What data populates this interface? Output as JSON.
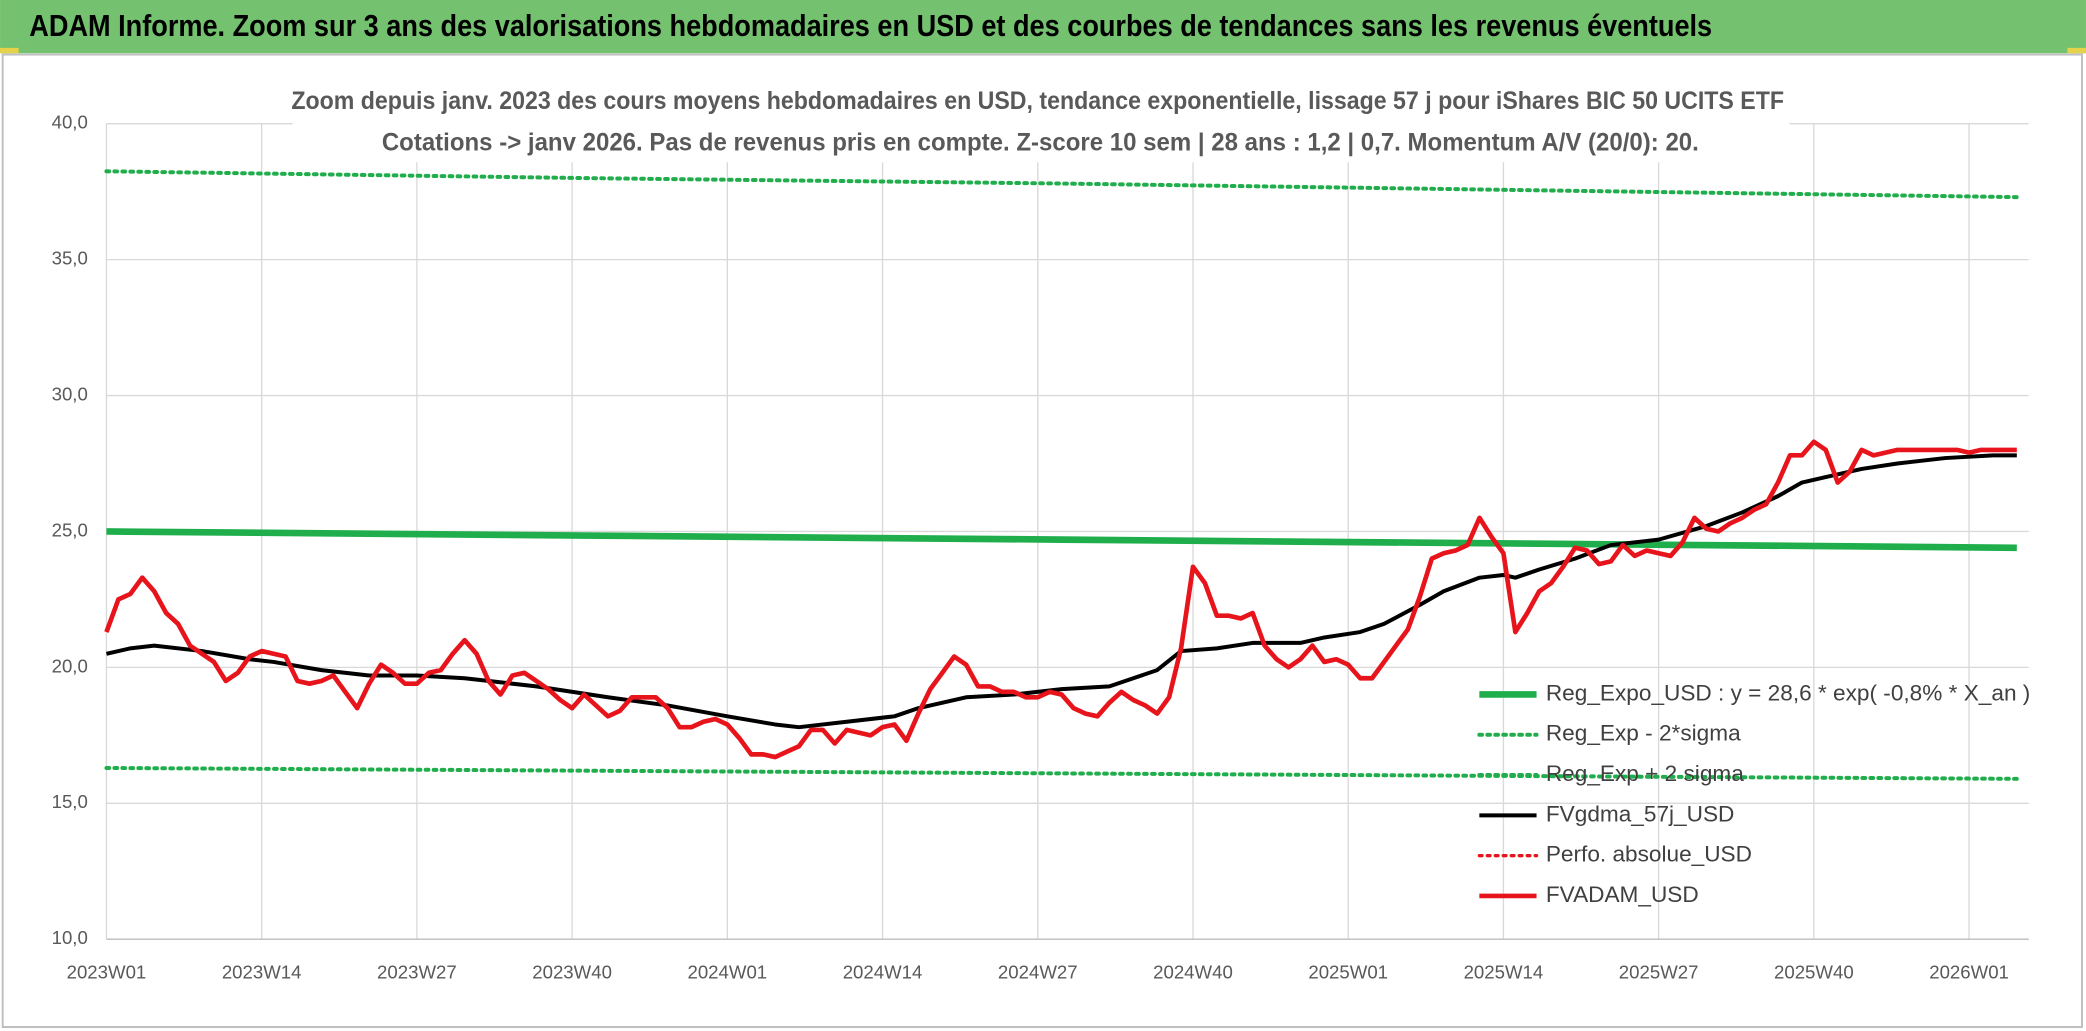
{
  "header": {
    "title": "ADAM Informe. Zoom sur 3 ans des valorisations hebdomadaires en USD et des courbes de tendances sans les revenus éventuels"
  },
  "chart_data": {
    "type": "line",
    "title": "Zoom depuis janv. 2023 des cours moyens hebdomadaires en USD, tendance exponentielle, lissage 57 j pour iShares BIC 50 UCITS ETF",
    "subtitle": "Cotations -> janv 2026. Pas de revenus pris en compte. Z-score 10 sem | 28 ans : 1,2 | 0,7. Momentum A/V (20/0): 20.",
    "xlim": [
      0,
      161
    ],
    "xticks": [
      {
        "value": 0,
        "label": "2023W01"
      },
      {
        "value": 13,
        "label": "2023W14"
      },
      {
        "value": 26,
        "label": "2023W27"
      },
      {
        "value": 39,
        "label": "2023W40"
      },
      {
        "value": 52,
        "label": "2024W01"
      },
      {
        "value": 65,
        "label": "2024W14"
      },
      {
        "value": 78,
        "label": "2024W27"
      },
      {
        "value": 91,
        "label": "2024W40"
      },
      {
        "value": 104,
        "label": "2025W01"
      },
      {
        "value": 117,
        "label": "2025W14"
      },
      {
        "value": 130,
        "label": "2025W27"
      },
      {
        "value": 143,
        "label": "2025W40"
      },
      {
        "value": 156,
        "label": "2026W01"
      }
    ],
    "ylim": [
      10,
      40
    ],
    "yticks": [
      {
        "value": 10,
        "label": "10,0"
      },
      {
        "value": 15,
        "label": "15,0"
      },
      {
        "value": 20,
        "label": "20,0"
      },
      {
        "value": 25,
        "label": "25,0"
      },
      {
        "value": 30,
        "label": "30,0"
      },
      {
        "value": 35,
        "label": "35,0"
      },
      {
        "value": 40,
        "label": "40,0"
      }
    ],
    "grid": true,
    "series": [
      {
        "name": "Reg_Expo_USD : y = 28,6 * exp( -0,8% *  X_an )",
        "color": "#1fae4b",
        "dash": "solid",
        "x": [
          0,
          40,
          80,
          120,
          160
        ],
        "values": [
          25.0,
          24.85,
          24.7,
          24.55,
          24.4
        ]
      },
      {
        "name": "Reg_Exp - 2*sigma",
        "color": "#1fae4b",
        "dash": "dotted",
        "x": [
          0,
          40,
          80,
          120,
          160
        ],
        "values": [
          16.3,
          16.2,
          16.1,
          16.0,
          15.9
        ]
      },
      {
        "name": "Reg_Exp + 2 sigma",
        "color": "#1fae4b",
        "dash": "dotted",
        "x": [
          0,
          40,
          80,
          120,
          160
        ],
        "values": [
          38.25,
          38.0,
          37.8,
          37.55,
          37.3
        ]
      },
      {
        "name": "FVgdma_57j_USD",
        "color": "#000000",
        "dash": "solid",
        "x": [
          0,
          2,
          4,
          8,
          12,
          14,
          18,
          22,
          26,
          30,
          36,
          42,
          47,
          52,
          56,
          58,
          62,
          66,
          68,
          72,
          76,
          80,
          84,
          86,
          88,
          90,
          93,
          96,
          100,
          102,
          105,
          107,
          110,
          112,
          115,
          117,
          118,
          120,
          123,
          126,
          130,
          134,
          137,
          140,
          142,
          144,
          147,
          150,
          154,
          158,
          160
        ],
        "values": [
          20.5,
          20.7,
          20.8,
          20.6,
          20.3,
          20.2,
          19.9,
          19.7,
          19.7,
          19.6,
          19.3,
          18.9,
          18.6,
          18.2,
          17.9,
          17.8,
          18.0,
          18.2,
          18.5,
          18.9,
          19.0,
          19.2,
          19.3,
          19.6,
          19.9,
          20.6,
          20.7,
          20.9,
          20.9,
          21.1,
          21.3,
          21.6,
          22.3,
          22.8,
          23.3,
          23.4,
          23.3,
          23.6,
          24.0,
          24.5,
          24.7,
          25.2,
          25.7,
          26.3,
          26.8,
          27.0,
          27.3,
          27.5,
          27.7,
          27.8,
          27.8
        ]
      },
      {
        "name": "Perfo. absolue_USD",
        "color": "#e8141b",
        "dash": "dotted",
        "x": [],
        "values": []
      },
      {
        "name": "FVADAM_USD",
        "color": "#e8141b",
        "dash": "solid",
        "x": [
          0,
          1,
          2,
          3,
          4,
          5,
          6,
          7,
          8,
          9,
          10,
          11,
          12,
          13,
          14,
          15,
          16,
          17,
          18,
          19,
          20,
          21,
          22,
          23,
          24,
          25,
          26,
          27,
          28,
          29,
          30,
          31,
          32,
          33,
          34,
          35,
          36,
          37,
          38,
          39,
          40,
          41,
          42,
          43,
          44,
          45,
          46,
          47,
          48,
          49,
          50,
          51,
          52,
          53,
          54,
          55,
          56,
          57,
          58,
          59,
          60,
          61,
          62,
          63,
          64,
          65,
          66,
          67,
          68,
          69,
          70,
          71,
          72,
          73,
          74,
          75,
          76,
          77,
          78,
          79,
          80,
          81,
          82,
          83,
          84,
          85,
          86,
          87,
          88,
          89,
          90,
          91,
          92,
          93,
          94,
          95,
          96,
          97,
          98,
          99,
          100,
          101,
          102,
          103,
          104,
          105,
          106,
          107,
          108,
          109,
          110,
          111,
          112,
          113,
          114,
          115,
          116,
          117,
          118,
          119,
          120,
          121,
          122,
          123,
          124,
          125,
          126,
          127,
          128,
          129,
          130,
          131,
          132,
          133,
          134,
          135,
          136,
          137,
          138,
          139,
          140,
          141,
          142,
          143,
          144,
          145,
          146,
          147,
          148,
          149,
          150,
          151,
          152,
          153,
          154,
          155,
          156,
          157,
          158,
          159,
          160
        ],
        "values": [
          21.3,
          22.5,
          22.7,
          23.3,
          22.8,
          22.0,
          21.6,
          20.8,
          20.5,
          20.2,
          19.5,
          19.8,
          20.4,
          20.6,
          20.5,
          20.4,
          19.5,
          19.4,
          19.5,
          19.7,
          19.1,
          18.5,
          19.4,
          20.1,
          19.8,
          19.4,
          19.4,
          19.8,
          19.9,
          20.5,
          21.0,
          20.5,
          19.5,
          19.0,
          19.7,
          19.8,
          19.5,
          19.2,
          18.8,
          18.5,
          19.0,
          18.6,
          18.2,
          18.4,
          18.9,
          18.9,
          18.9,
          18.5,
          17.8,
          17.8,
          18.0,
          18.1,
          17.9,
          17.4,
          16.8,
          16.8,
          16.7,
          16.9,
          17.1,
          17.7,
          17.7,
          17.2,
          17.7,
          17.6,
          17.5,
          17.8,
          17.9,
          17.3,
          18.3,
          19.2,
          19.8,
          20.4,
          20.1,
          19.3,
          19.3,
          19.1,
          19.1,
          18.9,
          18.9,
          19.1,
          19.0,
          18.5,
          18.3,
          18.2,
          18.7,
          19.1,
          18.8,
          18.6,
          18.3,
          18.9,
          20.7,
          23.7,
          23.1,
          21.9,
          21.9,
          21.8,
          22.0,
          20.8,
          20.3,
          20.0,
          20.3,
          20.8,
          20.2,
          20.3,
          20.1,
          19.6,
          19.6,
          20.2,
          20.8,
          21.4,
          22.6,
          24.0,
          24.2,
          24.3,
          24.5,
          25.5,
          24.8,
          24.2,
          21.3,
          22.0,
          22.8,
          23.1,
          23.7,
          24.4,
          24.3,
          23.8,
          23.9,
          24.5,
          24.1,
          24.3,
          24.2,
          24.1,
          24.6,
          25.5,
          25.1,
          25.0,
          25.3,
          25.5,
          25.8,
          26.0,
          26.8,
          27.8,
          27.8,
          28.3,
          28.0,
          26.8,
          27.2,
          28.0,
          27.8,
          27.9,
          28.0,
          28.0,
          28.0,
          28.0,
          28.0,
          28.0,
          27.9,
          28.0,
          28.0,
          28.0,
          28.0
        ]
      }
    ]
  }
}
